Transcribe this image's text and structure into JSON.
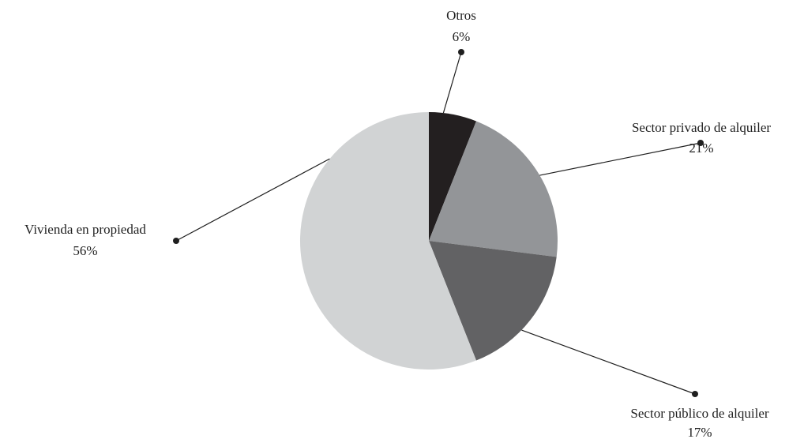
{
  "chart_data": {
    "type": "pie",
    "title": "",
    "start_angle_deg": 0,
    "direction": "clockwise",
    "slices": [
      {
        "label": "Otros",
        "value": 6,
        "value_label": "6%",
        "color": "#231f20"
      },
      {
        "label": "Sector privado de alquiler",
        "value": 21,
        "value_label": "21%",
        "color": "#939598"
      },
      {
        "label": "Sector público de alquiler",
        "value": 17,
        "value_label": "17%",
        "color": "#626264"
      },
      {
        "label": "Vivienda en propiedad",
        "value": 56,
        "value_label": "56%",
        "color": "#d1d3d4"
      }
    ],
    "legend": "none",
    "label_style": "callout lines with dot markers"
  }
}
